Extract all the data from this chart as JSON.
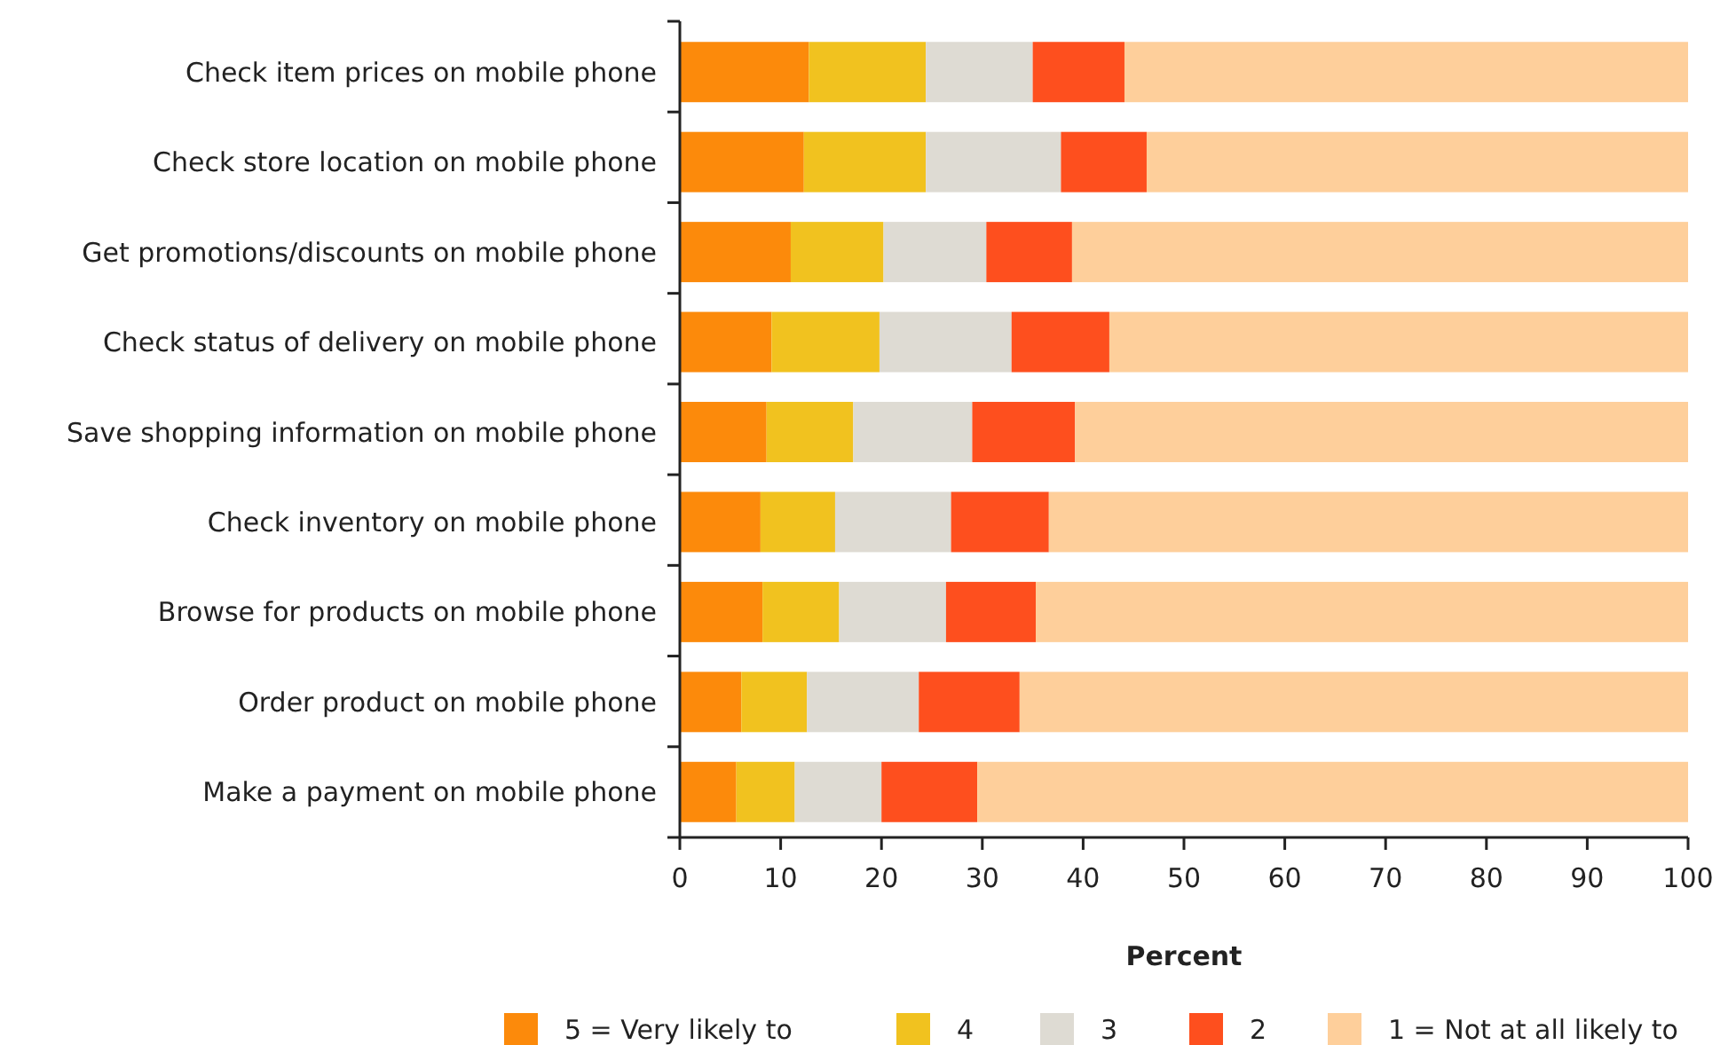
{
  "chart_data": {
    "type": "bar",
    "orientation": "horizontal",
    "stacked": true,
    "xlabel": "Percent",
    "categories": [
      "Check item prices on mobile phone",
      "Check store location on mobile phone",
      "Get promotions/discounts on mobile phone",
      "Check status of delivery on mobile phone",
      "Save shopping information on mobile phone",
      "Check inventory on mobile phone",
      "Browse for products on mobile phone",
      "Order product on mobile phone",
      "Make a payment on mobile phone"
    ],
    "series": [
      {
        "name": "5 = Very likely to",
        "color": "#fc8a0b",
        "values": [
          12.8,
          12.3,
          11.0,
          9.1,
          8.6,
          8.0,
          8.2,
          6.1,
          5.6
        ]
      },
      {
        "name": "4",
        "color": "#f1c21f",
        "values": [
          11.6,
          12.1,
          9.2,
          10.7,
          8.6,
          7.4,
          7.6,
          6.5,
          5.8
        ]
      },
      {
        "name": "3",
        "color": "#dedbd3",
        "values": [
          10.6,
          13.4,
          10.2,
          13.1,
          11.8,
          11.5,
          10.6,
          11.1,
          8.6
        ]
      },
      {
        "name": "2",
        "color": "#fe4f1e",
        "values": [
          9.1,
          8.5,
          8.5,
          9.7,
          10.2,
          9.7,
          8.9,
          10.0,
          9.5
        ]
      },
      {
        "name": "1 = Not at all likely to",
        "color": "#fecf9b",
        "values": [
          55.9,
          53.7,
          61.1,
          57.4,
          60.8,
          63.4,
          64.7,
          66.3,
          70.5
        ]
      }
    ],
    "xlim": [
      0,
      100
    ],
    "xticks": [
      0,
      10,
      20,
      30,
      40,
      50,
      60,
      70,
      80,
      90,
      100
    ],
    "grid": false,
    "legend": "bottom"
  }
}
